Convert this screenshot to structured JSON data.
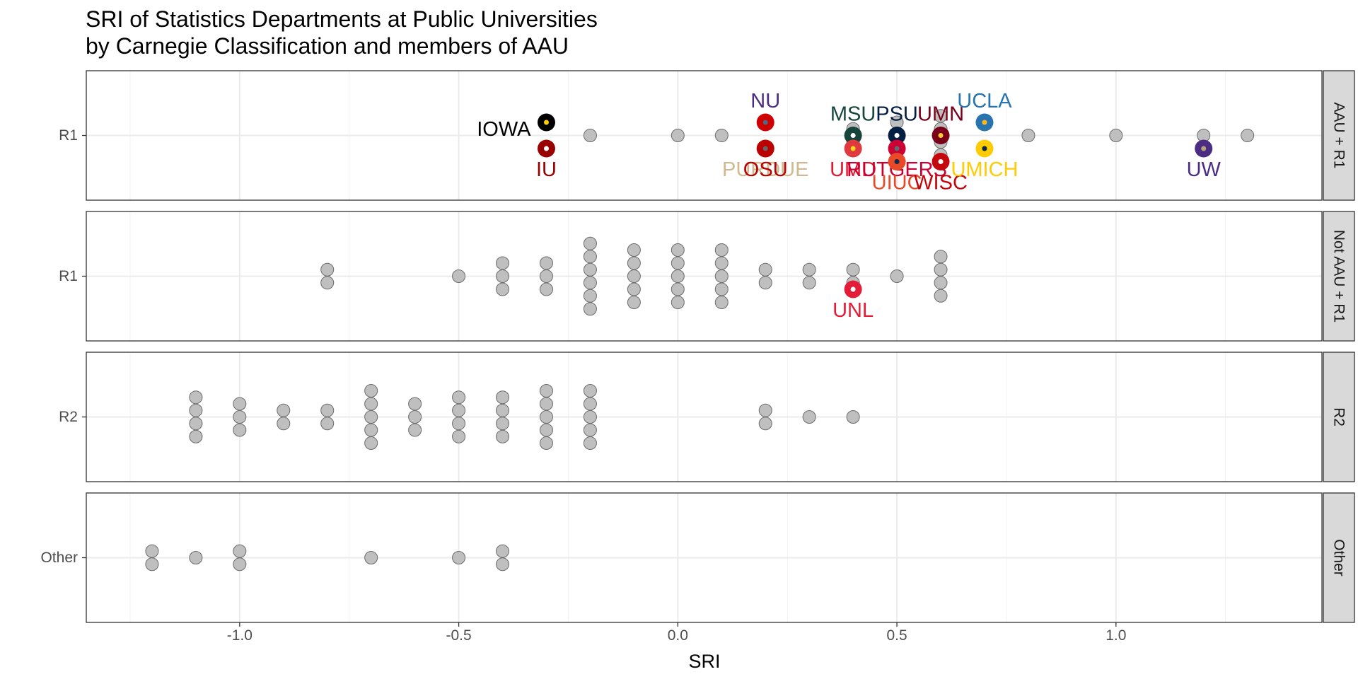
{
  "chart_data": {
    "type": "scatter",
    "title": "SRI of Statistics Departments at Public Universities",
    "subtitle": "by Carnegie Classification and members of AAU",
    "xlabel": "SRI",
    "ylabel": "",
    "xlim": [
      -1.35,
      1.47
    ],
    "x_ticks": [
      -1.0,
      -0.5,
      0.0,
      0.5,
      1.0
    ],
    "x_tick_labels": [
      "-1.0",
      "-0.5",
      "0.0",
      "0.5",
      "1.0"
    ],
    "grid": true,
    "default_point_color": "#bfbfbf",
    "panels": [
      {
        "strip": "AAU + R1",
        "y_label": "R1",
        "gray_points": [
          {
            "x": -0.2,
            "n": 1
          },
          {
            "x": 0.0,
            "n": 1
          },
          {
            "x": 0.1,
            "n": 1
          },
          {
            "x": 0.4,
            "n": 2
          },
          {
            "x": 0.5,
            "n": 3
          },
          {
            "x": 0.6,
            "n": 4
          },
          {
            "x": 0.8,
            "n": 1
          },
          {
            "x": 1.0,
            "n": 1
          },
          {
            "x": 1.2,
            "n": 1
          },
          {
            "x": 1.3,
            "n": 1
          }
        ],
        "highlighted": [
          {
            "label": "IOWA",
            "x": -0.3,
            "row": 1,
            "color": "#000000",
            "dot": "#FFCD00",
            "text_color": "#000000"
          },
          {
            "label": "IU",
            "x": -0.3,
            "row": -1,
            "color": "#990000",
            "dot": "#FFFFFF",
            "text_color": "#990000"
          },
          {
            "label": "NU",
            "x": 0.2,
            "row": 1,
            "color": "#D00000",
            "dot": "#4a6a8a",
            "text_color": "#4B2E83"
          },
          {
            "label": "PURDUE",
            "x": 0.2,
            "row": -1,
            "color": "#CFB991",
            "dot": "#000000",
            "text_color": "#CFB991"
          },
          {
            "label": "OSU",
            "x": 0.2,
            "row": -1,
            "color": "#BB0000",
            "dot": "#666666",
            "text_color": "#BB0000"
          },
          {
            "label": "MSU",
            "x": 0.4,
            "row": 0,
            "color": "#18453B",
            "dot": "#FFFFFF",
            "text_color": "#18453B"
          },
          {
            "label": "UMD",
            "x": 0.4,
            "row": -1,
            "color": "#E03a3e",
            "dot": "#FFD520",
            "text_color": "#E21833"
          },
          {
            "label": "PSU",
            "x": 0.5,
            "row": 0,
            "color": "#041E42",
            "dot": "#FFFFFF",
            "text_color": "#041E42"
          },
          {
            "label": "RUTGERS",
            "x": 0.5,
            "row": -1,
            "color": "#CC0033",
            "dot": "#5f6a72",
            "text_color": "#CC0033"
          },
          {
            "label": "UIUC",
            "x": 0.5,
            "row": -2,
            "color": "#E84A27",
            "dot": "#13294B",
            "text_color": "#E84A27"
          },
          {
            "label": "UMN",
            "x": 0.6,
            "row": 0,
            "color": "#7A0019",
            "dot": "#FFCC33",
            "text_color": "#7A0019"
          },
          {
            "label": "WISC",
            "x": 0.6,
            "row": -2,
            "color": "#C5050C",
            "dot": "#FFFFFF",
            "text_color": "#C5050C"
          },
          {
            "label": "UCLA",
            "x": 0.7,
            "row": 1,
            "color": "#2774AE",
            "dot": "#FFB81C",
            "text_color": "#2774AE"
          },
          {
            "label": "UMICH",
            "x": 0.7,
            "row": -1,
            "color": "#FFCB05",
            "dot": "#00274C",
            "text_color": "#FFCB05"
          },
          {
            "label": "UW",
            "x": 1.2,
            "row": -1,
            "color": "#4B2E83",
            "dot": "#B7A57A",
            "text_color": "#4B2E83"
          }
        ]
      },
      {
        "strip": "Not AAU + R1",
        "y_label": "R1",
        "gray_points": [
          {
            "x": -0.8,
            "n": 2
          },
          {
            "x": -0.5,
            "n": 1
          },
          {
            "x": -0.4,
            "n": 3
          },
          {
            "x": -0.3,
            "n": 3
          },
          {
            "x": -0.2,
            "n": 6
          },
          {
            "x": -0.1,
            "n": 5
          },
          {
            "x": 0.0,
            "n": 5
          },
          {
            "x": 0.1,
            "n": 5
          },
          {
            "x": 0.2,
            "n": 2
          },
          {
            "x": 0.3,
            "n": 2
          },
          {
            "x": 0.4,
            "n": 2
          },
          {
            "x": 0.5,
            "n": 1
          },
          {
            "x": 0.6,
            "n": 4
          }
        ],
        "highlighted": [
          {
            "label": "UNL",
            "x": 0.4,
            "row": -1,
            "color": "#E41C38",
            "dot": "#FFFFFF",
            "text_color": "#E41C38"
          }
        ]
      },
      {
        "strip": "R2",
        "y_label": "R2",
        "gray_points": [
          {
            "x": -1.1,
            "n": 4
          },
          {
            "x": -1.0,
            "n": 3
          },
          {
            "x": -0.9,
            "n": 2
          },
          {
            "x": -0.8,
            "n": 2
          },
          {
            "x": -0.7,
            "n": 5
          },
          {
            "x": -0.6,
            "n": 3
          },
          {
            "x": -0.5,
            "n": 4
          },
          {
            "x": -0.4,
            "n": 4
          },
          {
            "x": -0.3,
            "n": 5
          },
          {
            "x": -0.2,
            "n": 5
          },
          {
            "x": 0.2,
            "n": 2
          },
          {
            "x": 0.3,
            "n": 1
          },
          {
            "x": 0.4,
            "n": 1
          }
        ],
        "highlighted": []
      },
      {
        "strip": "Other",
        "y_label": "Other",
        "gray_points": [
          {
            "x": -1.2,
            "n": 2
          },
          {
            "x": -1.1,
            "n": 1
          },
          {
            "x": -1.0,
            "n": 2
          },
          {
            "x": -0.7,
            "n": 1
          },
          {
            "x": -0.5,
            "n": 1
          },
          {
            "x": -0.4,
            "n": 2
          }
        ],
        "highlighted": []
      }
    ]
  }
}
